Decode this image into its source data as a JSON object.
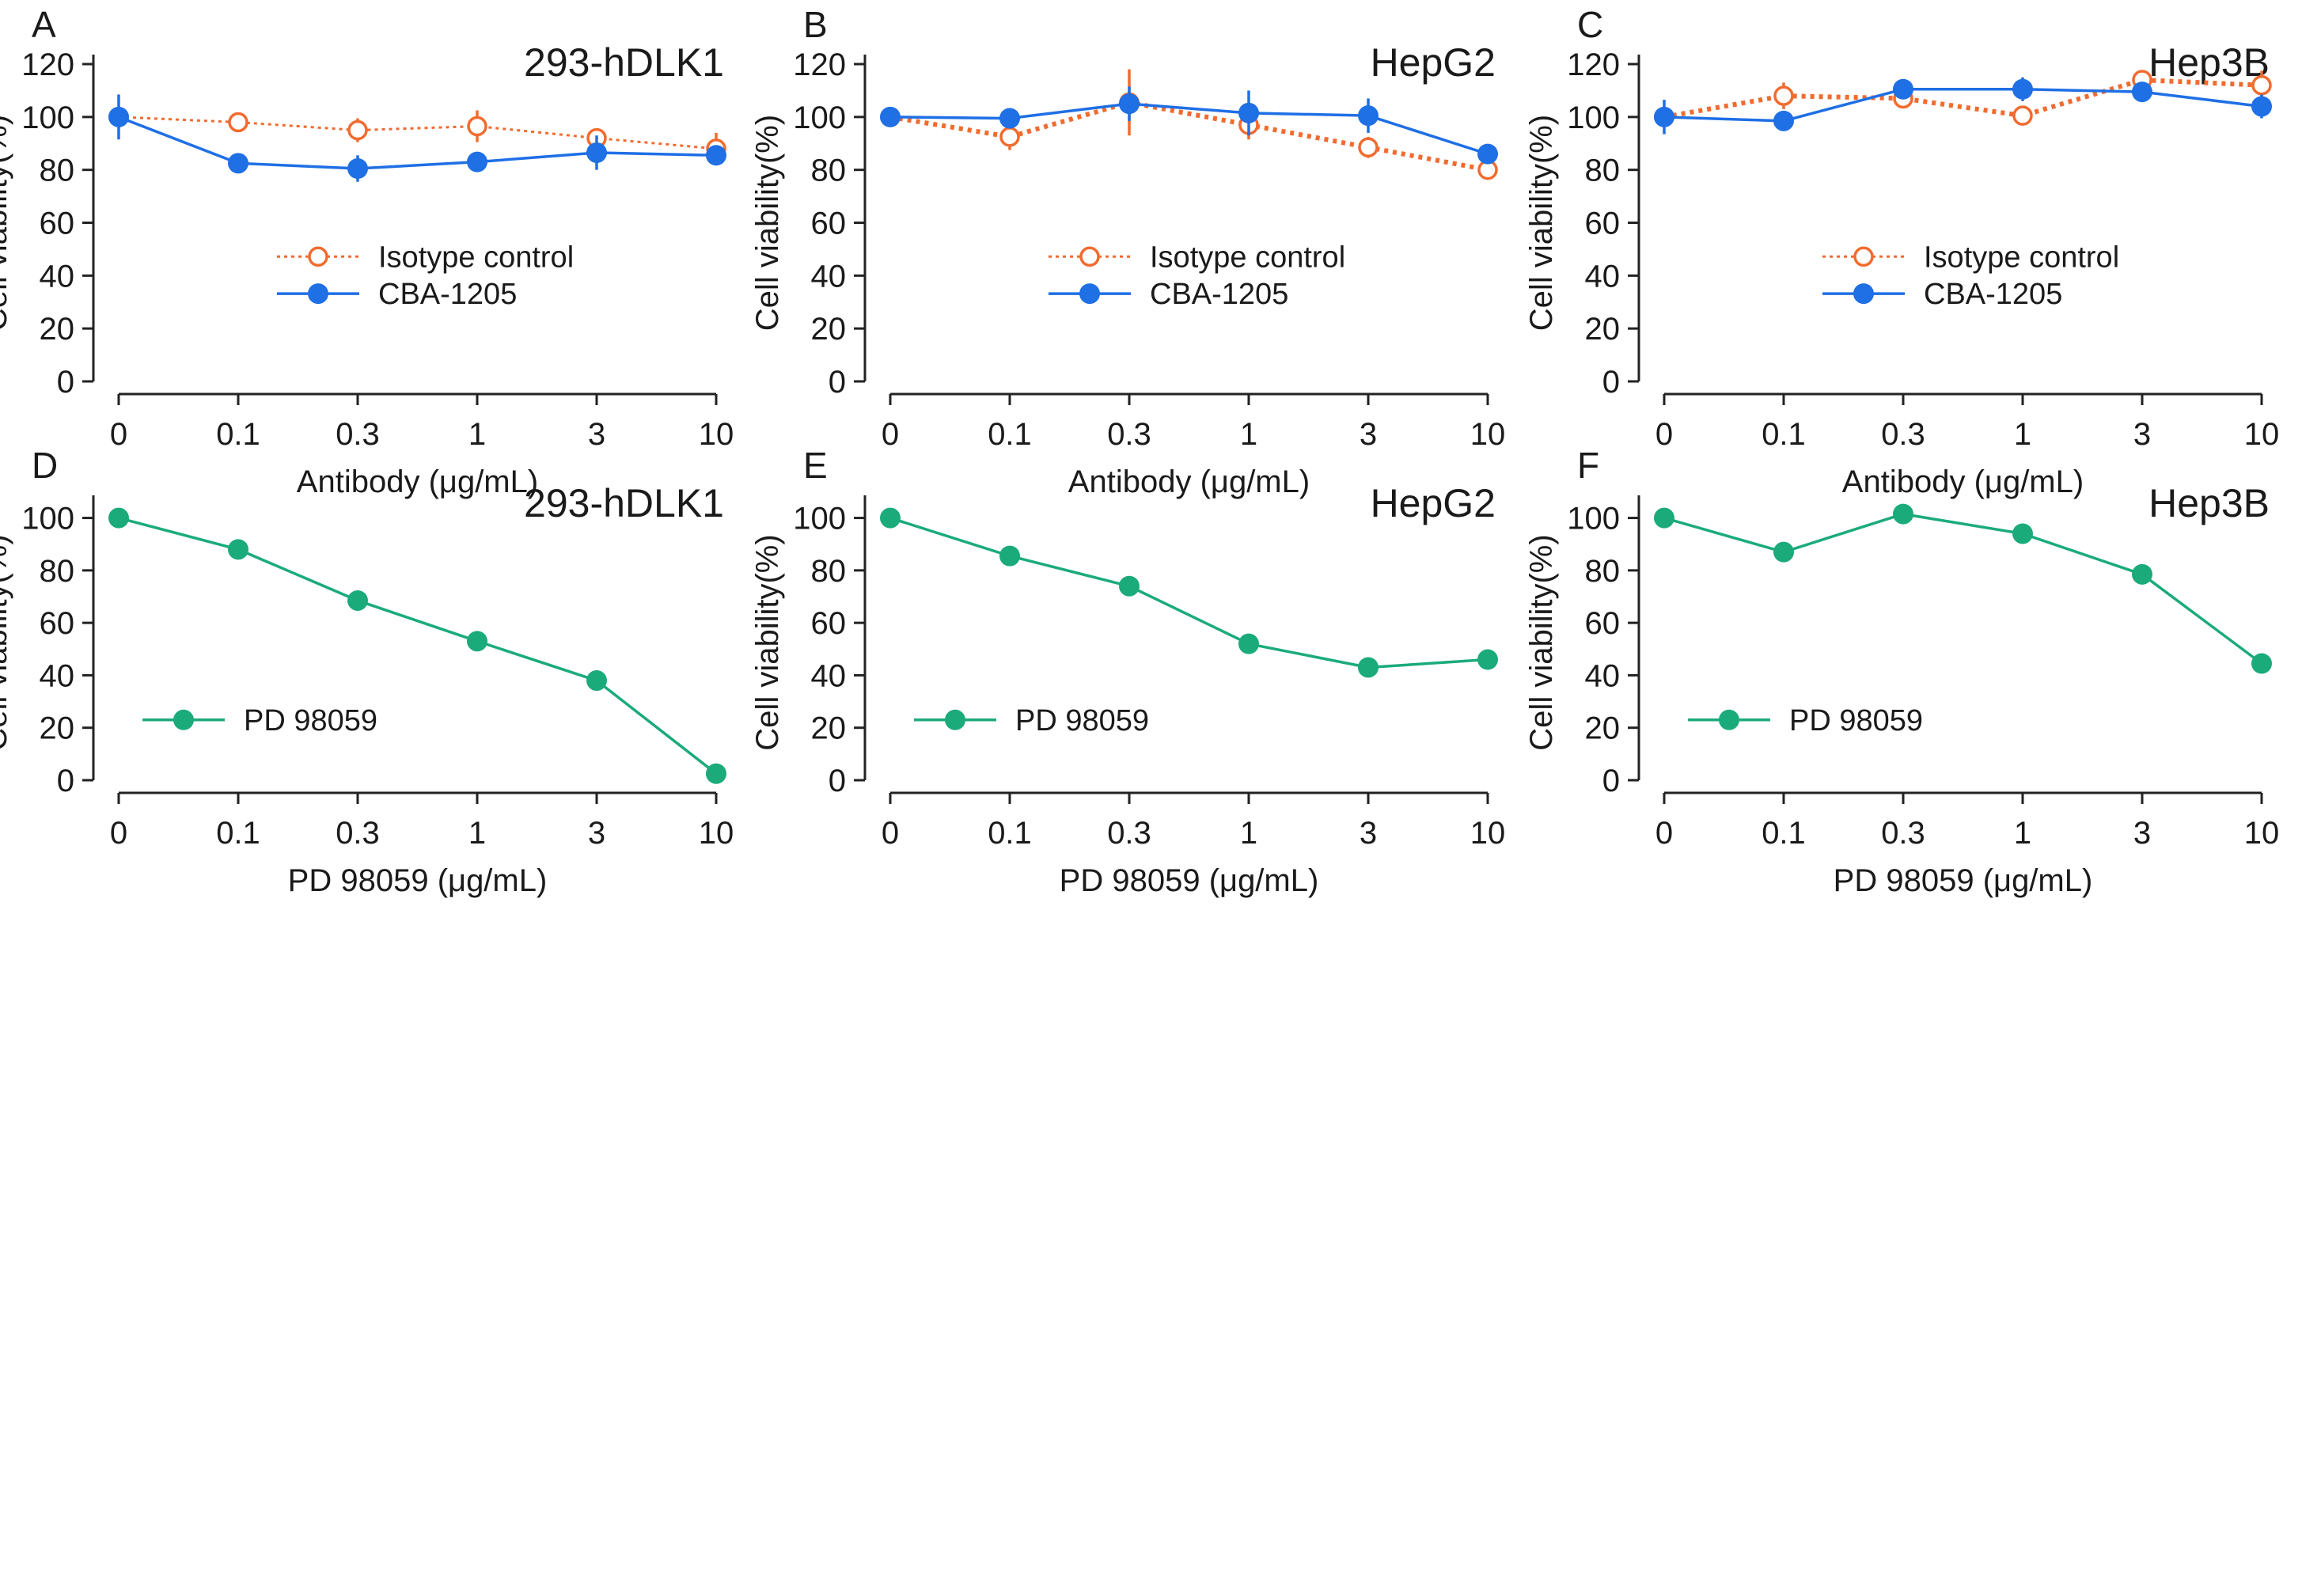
{
  "figure": {
    "colors": {
      "isotype": "#f26b2e",
      "cba": "#1f6fe5",
      "pd": "#1bab7b",
      "axis": "#222222"
    }
  },
  "chart_data": [
    {
      "panel": "A",
      "type": "line",
      "title": "293-hDLK1",
      "categories": [
        "0",
        "0.1",
        "0.3",
        "1",
        "3",
        "10"
      ],
      "ylabel": "Cell viability(%)",
      "xlabel": "Antibody (μg/mL)",
      "ylim": [
        0,
        120
      ],
      "yticks": [
        0,
        20,
        40,
        60,
        80,
        100,
        120
      ],
      "legend_position": "middle-right",
      "series": [
        {
          "name": "Isotype control",
          "style": "isotype",
          "values": [
            100,
            98,
            95,
            96.5,
            92,
            88
          ],
          "errors": [
            0,
            3,
            4.5,
            6,
            2,
            6
          ]
        },
        {
          "name": "CBA-1205",
          "style": "cba",
          "values": [
            100,
            82.5,
            80.5,
            83,
            86.5,
            85.5
          ],
          "errors": [
            8.5,
            3.5,
            5,
            2,
            6.5,
            2
          ]
        }
      ]
    },
    {
      "panel": "B",
      "type": "line",
      "title": "HepG2",
      "categories": [
        "0",
        "0.1",
        "0.3",
        "1",
        "3",
        "10"
      ],
      "ylabel": "Cell viability(%)",
      "xlabel": "Antibody (μg/mL)",
      "ylim": [
        0,
        120
      ],
      "yticks": [
        0,
        20,
        40,
        60,
        80,
        100,
        120
      ],
      "legend_position": "middle-right",
      "series": [
        {
          "name": "Isotype control",
          "style": "isotype",
          "values": [
            100,
            92.5,
            105.5,
            97,
            88.5,
            80
          ],
          "errors": [
            3,
            5,
            12.5,
            5.5,
            4,
            0
          ]
        },
        {
          "name": "CBA-1205",
          "style": "cba",
          "values": [
            100,
            99.5,
            105,
            101.5,
            100.5,
            86
          ],
          "errors": [
            0,
            3,
            6.5,
            8.5,
            6.5,
            0
          ]
        }
      ]
    },
    {
      "panel": "C",
      "type": "line",
      "title": "Hep3B",
      "categories": [
        "0",
        "0.1",
        "0.3",
        "1",
        "3",
        "10"
      ],
      "ylabel": "Cell viability(%)",
      "xlabel": "Antibody (μg/mL)",
      "ylim": [
        0,
        120
      ],
      "yticks": [
        0,
        20,
        40,
        60,
        80,
        100,
        120
      ],
      "legend_position": "middle-right",
      "series": [
        {
          "name": "Isotype control",
          "style": "isotype",
          "values": [
            100,
            108,
            107,
            100.5,
            114,
            112
          ],
          "errors": [
            0,
            5,
            0,
            0,
            0,
            5.5
          ]
        },
        {
          "name": "CBA-1205",
          "style": "cba",
          "values": [
            100,
            98.5,
            110.5,
            110.5,
            109.5,
            104
          ],
          "errors": [
            6.5,
            0,
            0,
            4.5,
            0,
            4.5
          ]
        }
      ]
    },
    {
      "panel": "D",
      "type": "line",
      "title": "293-hDLK1",
      "categories": [
        "0",
        "0.1",
        "0.3",
        "1",
        "3",
        "10"
      ],
      "ylabel": "Cell viability(%)",
      "xlabel": "PD 98059 (μg/mL)",
      "ylim": [
        0,
        105
      ],
      "yticks": [
        0,
        20,
        40,
        60,
        80,
        100
      ],
      "legend_position": "lower-left",
      "series": [
        {
          "name": "PD 98059",
          "style": "pd",
          "values": [
            100,
            88,
            68.5,
            53,
            38,
            2.5
          ],
          "errors": [
            0,
            0,
            0,
            0,
            0,
            0
          ]
        }
      ]
    },
    {
      "panel": "E",
      "type": "line",
      "title": "HepG2",
      "categories": [
        "0",
        "0.1",
        "0.3",
        "1",
        "3",
        "10"
      ],
      "ylabel": "Cell viability(%)",
      "xlabel": "PD 98059 (μg/mL)",
      "ylim": [
        0,
        105
      ],
      "yticks": [
        0,
        20,
        40,
        60,
        80,
        100
      ],
      "legend_position": "lower-left",
      "series": [
        {
          "name": "PD 98059",
          "style": "pd",
          "values": [
            100,
            85.5,
            74,
            52,
            43,
            46
          ],
          "errors": [
            0,
            0,
            0,
            0,
            0,
            0
          ]
        }
      ]
    },
    {
      "panel": "F",
      "type": "line",
      "title": "Hep3B",
      "categories": [
        "0",
        "0.1",
        "0.3",
        "1",
        "3",
        "10"
      ],
      "ylabel": "Cell viability(%)",
      "xlabel": "PD 98059 (μg/mL)",
      "ylim": [
        0,
        105
      ],
      "yticks": [
        0,
        20,
        40,
        60,
        80,
        100
      ],
      "legend_position": "lower-left",
      "series": [
        {
          "name": "PD 98059",
          "style": "pd",
          "values": [
            100,
            87,
            101.5,
            94,
            78.5,
            44.5
          ],
          "errors": [
            0,
            0,
            0,
            0,
            0,
            0
          ]
        }
      ]
    }
  ]
}
